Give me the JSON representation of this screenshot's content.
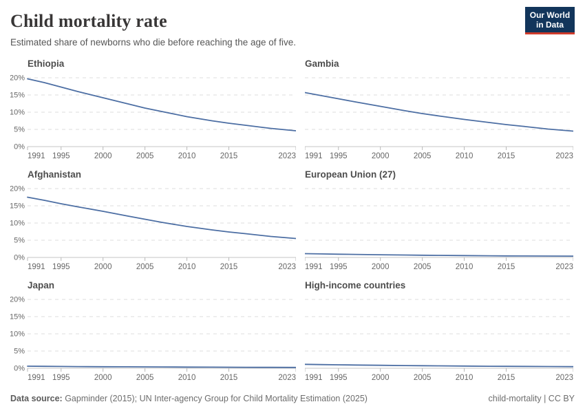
{
  "header": {
    "title": "Child mortality rate",
    "subtitle": "Estimated share of newborns who die before reaching the age of five.",
    "logo": {
      "line1": "Our World",
      "line2": "in Data"
    }
  },
  "footer": {
    "source_label": "Data source:",
    "source_value": " Gapminder (2015); UN Inter-agency Group for Child Mortality Estimation (2025)",
    "attribution": "child-mortality | CC BY"
  },
  "colors": {
    "line": "#4c6ea3",
    "grid": "#dcdcdc",
    "axis": "#c4c4c4",
    "tick": "#b8b8b8",
    "tick_text": "#666666",
    "logo_bg": "#12355b",
    "logo_red": "#cf3b2c"
  },
  "axis": {
    "x_min": 1991,
    "x_max": 2023,
    "y_min": 0,
    "y_max": 20,
    "grid_dashed": true,
    "y_ticks": [
      {
        "v": 20,
        "label": "20%"
      },
      {
        "v": 15,
        "label": "15%"
      },
      {
        "v": 10,
        "label": "10%"
      },
      {
        "v": 5,
        "label": "5%"
      },
      {
        "v": 0,
        "label": "0%"
      }
    ],
    "x_ticks": [
      {
        "v": 1991,
        "label": "1991"
      },
      {
        "v": 1995,
        "label": "1995"
      },
      {
        "v": 2000,
        "label": "2000"
      },
      {
        "v": 2005,
        "label": "2005"
      },
      {
        "v": 2010,
        "label": "2010"
      },
      {
        "v": 2015,
        "label": "2015"
      },
      {
        "v": 2023,
        "label": "2023"
      }
    ]
  },
  "chart_data": [
    {
      "type": "line",
      "title": "Ethiopia",
      "x": [
        1991,
        1993,
        1995,
        1997,
        2000,
        2003,
        2005,
        2007,
        2010,
        2013,
        2015,
        2017,
        2020,
        2023
      ],
      "values": [
        19.7,
        18.6,
        17.3,
        16.0,
        14.2,
        12.4,
        11.2,
        10.2,
        8.7,
        7.5,
        6.8,
        6.2,
        5.3,
        4.6
      ],
      "xlabel": "",
      "ylabel": "",
      "ylim": [
        0,
        20
      ]
    },
    {
      "type": "line",
      "title": "Gambia",
      "x": [
        1991,
        1993,
        1995,
        1997,
        2000,
        2003,
        2005,
        2007,
        2010,
        2013,
        2015,
        2017,
        2020,
        2023
      ],
      "values": [
        15.7,
        14.8,
        13.9,
        13.0,
        11.7,
        10.4,
        9.6,
        8.9,
        7.9,
        7.0,
        6.4,
        5.9,
        5.1,
        4.5
      ],
      "xlabel": "",
      "ylabel": "",
      "ylim": [
        0,
        20
      ]
    },
    {
      "type": "line",
      "title": "Afghanistan",
      "x": [
        1991,
        1993,
        1995,
        1997,
        2000,
        2003,
        2005,
        2007,
        2010,
        2013,
        2015,
        2017,
        2020,
        2023
      ],
      "values": [
        17.5,
        16.6,
        15.6,
        14.7,
        13.4,
        12.0,
        11.1,
        10.2,
        9.0,
        8.0,
        7.4,
        6.9,
        6.1,
        5.5
      ],
      "xlabel": "",
      "ylabel": "",
      "ylim": [
        0,
        20
      ]
    },
    {
      "type": "line",
      "title": "European Union (27)",
      "x": [
        1991,
        1993,
        1995,
        1997,
        2000,
        2003,
        2005,
        2007,
        2010,
        2013,
        2015,
        2017,
        2020,
        2023
      ],
      "values": [
        1.1,
        1.02,
        0.95,
        0.88,
        0.78,
        0.7,
        0.65,
        0.6,
        0.53,
        0.48,
        0.45,
        0.43,
        0.41,
        0.38
      ],
      "xlabel": "",
      "ylabel": "",
      "ylim": [
        0,
        20
      ]
    },
    {
      "type": "line",
      "title": "Japan",
      "x": [
        1991,
        1993,
        1995,
        1997,
        2000,
        2003,
        2005,
        2007,
        2010,
        2013,
        2015,
        2017,
        2020,
        2023
      ],
      "values": [
        0.6,
        0.55,
        0.52,
        0.48,
        0.45,
        0.42,
        0.4,
        0.38,
        0.35,
        0.32,
        0.3,
        0.28,
        0.26,
        0.25
      ],
      "xlabel": "",
      "ylabel": "",
      "ylim": [
        0,
        20
      ]
    },
    {
      "type": "line",
      "title": "High-income countries",
      "x": [
        1991,
        1993,
        1995,
        1997,
        2000,
        2003,
        2005,
        2007,
        2010,
        2013,
        2015,
        2017,
        2020,
        2023
      ],
      "values": [
        1.15,
        1.07,
        1.0,
        0.94,
        0.85,
        0.78,
        0.74,
        0.7,
        0.64,
        0.58,
        0.55,
        0.53,
        0.5,
        0.47
      ],
      "xlabel": "",
      "ylabel": "",
      "ylim": [
        0,
        20
      ]
    }
  ]
}
